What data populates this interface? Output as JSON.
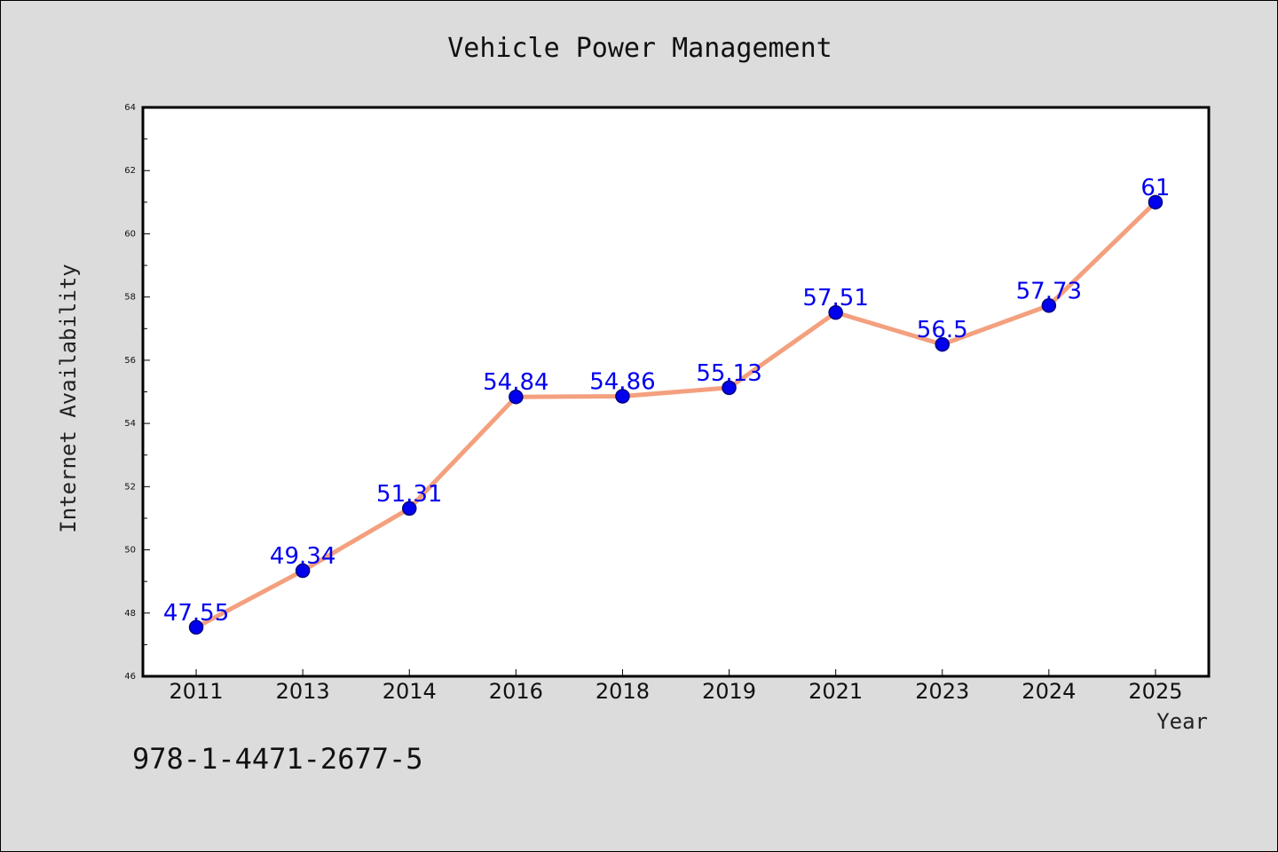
{
  "colors": {
    "page_background": "#dcdcdc",
    "plot_background": "#ffffff",
    "line": "#f4a07e",
    "marker_fill": "#0000ee",
    "marker_stroke": "#000080",
    "data_label": "#0000ee"
  },
  "footer": {
    "isbn": "978-1-4471-2677-5"
  },
  "chart_data": {
    "type": "line",
    "title": "Vehicle Power Management",
    "xlabel": "Year",
    "ylabel": "Internet Availability",
    "categories": [
      "2011",
      "2013",
      "2014",
      "2016",
      "2018",
      "2019",
      "2021",
      "2023",
      "2024",
      "2025"
    ],
    "series": [
      {
        "values": [
          47.55,
          49.34,
          51.31,
          54.84,
          54.86,
          55.13,
          57.51,
          56.5,
          57.73,
          61
        ]
      }
    ],
    "data_labels": [
      "47.55",
      "49.34",
      "51.31",
      "54.84",
      "54.86",
      "55.13",
      "57.51",
      "56.5",
      "57.73",
      "61"
    ],
    "ylim": [
      46,
      64
    ],
    "yticks": [
      46,
      48,
      50,
      52,
      54,
      56,
      58,
      60,
      62,
      64
    ],
    "y_minor_step": 1,
    "grid": false,
    "legend": "none"
  }
}
